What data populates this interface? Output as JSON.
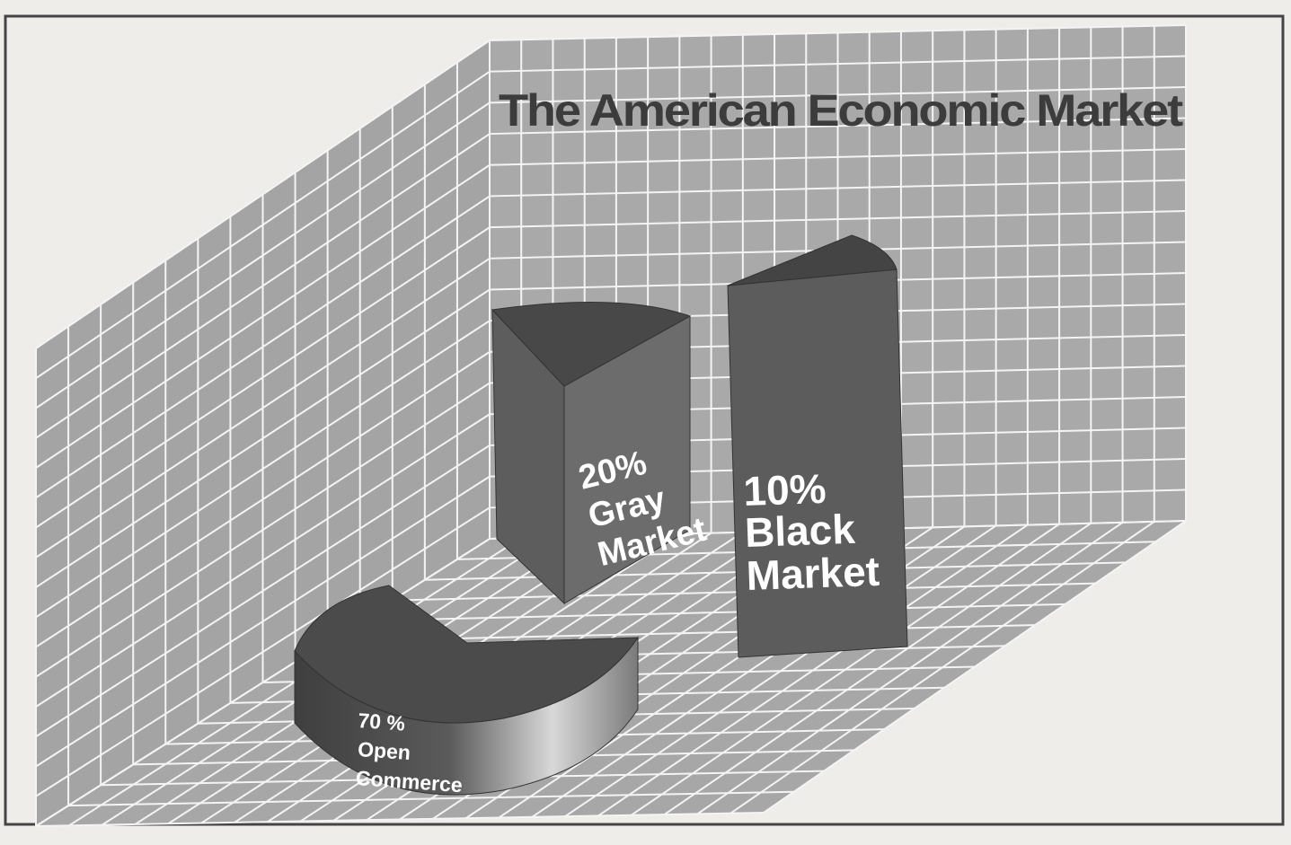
{
  "chart_data": {
    "type": "pie",
    "title": "The American Economic Market",
    "style": "3d-exploded-pie",
    "slices": [
      {
        "label": "70 %",
        "name_lines": [
          "Open",
          "Commerce"
        ],
        "value": 70
      },
      {
        "label": "20%",
        "name_lines": [
          "Gray",
          "Market"
        ],
        "value": 20
      },
      {
        "label": "10%",
        "name_lines": [
          "Black",
          "Market"
        ],
        "value": 10
      }
    ],
    "grid": true
  },
  "colors": {
    "background": "#eeedea",
    "grid_panel": "#a9a9a9",
    "grid_line": "#f4f4f4",
    "slice_dark": "#4d4d4d",
    "slice_mid": "#6a6a6a",
    "title": "#3c3c3c",
    "label": "#ffffff"
  }
}
